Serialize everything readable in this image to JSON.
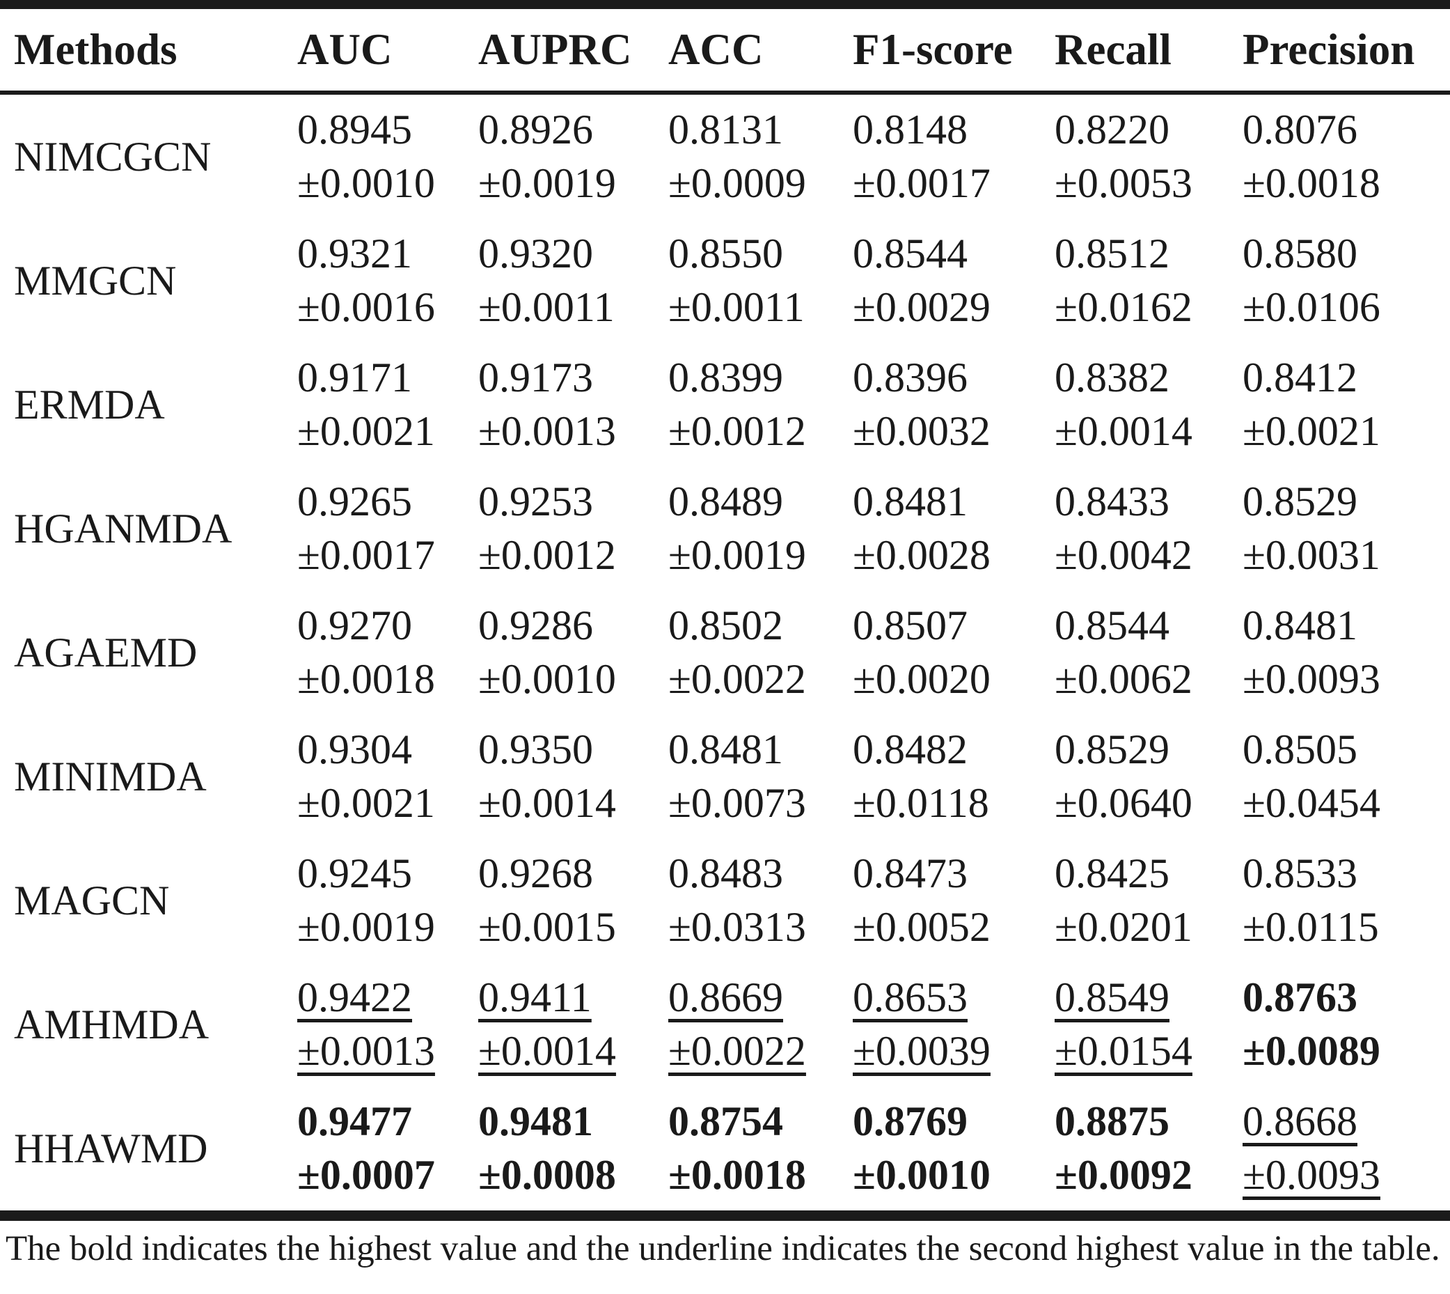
{
  "header": {
    "methods": "Methods",
    "auc": "AUC",
    "auprc": "AUPRC",
    "acc": "ACC",
    "f1": "F1-score",
    "recall": "Recall",
    "precision": "Precision"
  },
  "rows": [
    {
      "method": "NIMCGCN",
      "auc": "0.8945",
      "auc_sd": "±0.0010",
      "auprc": "0.8926",
      "auprc_sd": "±0.0019",
      "acc": "0.8131",
      "acc_sd": "±0.0009",
      "f1": "0.8148",
      "f1_sd": "±0.0017",
      "recall": "0.8220",
      "recall_sd": "±0.0053",
      "precision": "0.8076",
      "precision_sd": "±0.0018"
    },
    {
      "method": "MMGCN",
      "auc": "0.9321",
      "auc_sd": "±0.0016",
      "auprc": "0.9320",
      "auprc_sd": "±0.0011",
      "acc": "0.8550",
      "acc_sd": "±0.0011",
      "f1": "0.8544",
      "f1_sd": "±0.0029",
      "recall": "0.8512",
      "recall_sd": "±0.0162",
      "precision": "0.8580",
      "precision_sd": "±0.0106"
    },
    {
      "method": "ERMDA",
      "auc": "0.9171",
      "auc_sd": "±0.0021",
      "auprc": "0.9173",
      "auprc_sd": "±0.0013",
      "acc": "0.8399",
      "acc_sd": "±0.0012",
      "f1": "0.8396",
      "f1_sd": "±0.0032",
      "recall": "0.8382",
      "recall_sd": "±0.0014",
      "precision": "0.8412",
      "precision_sd": "±0.0021"
    },
    {
      "method": "HGANMDA",
      "auc": "0.9265",
      "auc_sd": "±0.0017",
      "auprc": "0.9253",
      "auprc_sd": "±0.0012",
      "acc": "0.8489",
      "acc_sd": "±0.0019",
      "f1": "0.8481",
      "f1_sd": "±0.0028",
      "recall": "0.8433",
      "recall_sd": "±0.0042",
      "precision": "0.8529",
      "precision_sd": "±0.0031"
    },
    {
      "method": "AGAEMD",
      "auc": "0.9270",
      "auc_sd": "±0.0018",
      "auprc": "0.9286",
      "auprc_sd": "±0.0010",
      "acc": "0.8502",
      "acc_sd": "±0.0022",
      "f1": "0.8507",
      "f1_sd": "±0.0020",
      "recall": "0.8544",
      "recall_sd": "±0.0062",
      "precision": "0.8481",
      "precision_sd": "±0.0093"
    },
    {
      "method": "MINIMDA",
      "auc": "0.9304",
      "auc_sd": "±0.0021",
      "auprc": "0.9350",
      "auprc_sd": "±0.0014",
      "acc": "0.8481",
      "acc_sd": "±0.0073",
      "f1": "0.8482",
      "f1_sd": "±0.0118",
      "recall": "0.8529",
      "recall_sd": "±0.0640",
      "precision": "0.8505",
      "precision_sd": "±0.0454"
    },
    {
      "method": "MAGCN",
      "auc": "0.9245",
      "auc_sd": "±0.0019",
      "auprc": "0.9268",
      "auprc_sd": "±0.0015",
      "acc": "0.8483",
      "acc_sd": "±0.0313",
      "f1": "0.8473",
      "f1_sd": "±0.0052",
      "recall": "0.8425",
      "recall_sd": "±0.0201",
      "precision": "0.8533",
      "precision_sd": "±0.0115"
    },
    {
      "method": "AMHMDA",
      "auc": "0.9422",
      "auc_sd": "±0.0013",
      "auprc": "0.9411",
      "auprc_sd": "±0.0014",
      "acc": "0.8669",
      "acc_sd": "±0.0022",
      "f1": "0.8653",
      "f1_sd": "±0.0039",
      "recall": "0.8549",
      "recall_sd": "±0.0154",
      "precision": "0.8763",
      "precision_sd": "±0.0089"
    },
    {
      "method": "HHAWMD",
      "auc": "0.9477",
      "auc_sd": "±0.0007",
      "auprc": "0.9481",
      "auprc_sd": "±0.0008",
      "acc": "0.8754",
      "acc_sd": "±0.0018",
      "f1": "0.8769",
      "f1_sd": "±0.0010",
      "recall": "0.8875",
      "recall_sd": "±0.0092",
      "precision": "0.8668",
      "precision_sd": "±0.0093"
    }
  ],
  "footnote": "The bold indicates the highest value and the underline indicates the second highest value in the table."
}
